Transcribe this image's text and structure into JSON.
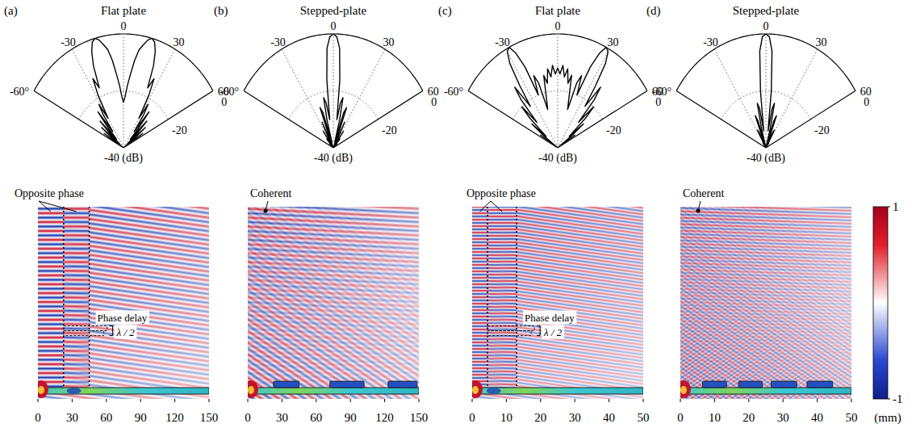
{
  "chart_data": [
    {
      "type": "polar",
      "label": "(a)",
      "title": "Flat plate",
      "color": "#000000",
      "grid": true,
      "x": [
        -60,
        -58,
        -56,
        -54,
        -52,
        -50,
        -48,
        -46,
        -44,
        -42,
        -40,
        -38,
        -36,
        -34,
        -32,
        -30,
        -28,
        -26,
        -24,
        -22,
        -20,
        -18,
        -16,
        -14,
        -12,
        -10,
        -8,
        -6,
        -4,
        -2,
        0,
        2,
        4,
        6,
        8,
        10,
        12,
        14,
        16,
        18,
        20,
        22,
        24,
        26,
        28,
        30,
        32,
        34,
        36,
        38,
        40,
        42,
        44,
        46,
        48,
        50,
        52,
        54,
        56,
        58,
        60
      ],
      "values": [
        -40,
        -36,
        -31,
        -40,
        -34,
        -29,
        -38,
        -32,
        -27,
        -36,
        -30,
        -24,
        -33,
        -26,
        -22,
        -28,
        -19,
        -13,
        -17,
        -9,
        -4,
        -1,
        0,
        -1,
        -3,
        -5,
        -9,
        -14,
        -18,
        -22,
        -24,
        -22,
        -18,
        -14,
        -9,
        -5,
        -3,
        -1,
        0,
        -1,
        -4,
        -9,
        -17,
        -13,
        -19,
        -28,
        -22,
        -26,
        -33,
        -24,
        -30,
        -36,
        -27,
        -32,
        -38,
        -29,
        -34,
        -40,
        -31,
        -36,
        -40
      ],
      "xlim": [
        -60,
        60
      ],
      "xticks": [
        {
          "value": -60,
          "label": "-60°"
        },
        -30,
        0,
        30,
        60
      ],
      "ylim": [
        -40,
        0
      ],
      "yticks": [
        {
          "value": -40,
          "label": "-40 (dB)"
        },
        -20,
        0
      ]
    },
    {
      "type": "field_map",
      "xlim": [
        0,
        150
      ],
      "xticks": [
        0,
        30,
        60,
        90,
        120,
        150
      ],
      "annotations": [
        "Opposite phase",
        "Phase delay",
        "λ / 2"
      ]
    },
    {
      "type": "polar",
      "label": "(b)",
      "title": "Stepped-plate",
      "color": "#000000",
      "grid": true,
      "x": [
        -60,
        -58,
        -56,
        -54,
        -52,
        -50,
        -48,
        -46,
        -44,
        -42,
        -40,
        -38,
        -36,
        -34,
        -32,
        -30,
        -28,
        -26,
        -24,
        -22,
        -20,
        -18,
        -16,
        -14,
        -12,
        -10,
        -8,
        -6,
        -4,
        -2,
        0,
        2,
        4,
        6,
        8,
        10,
        12,
        14,
        16,
        18,
        20,
        22,
        24,
        26,
        28,
        30,
        32,
        34,
        36,
        38,
        40,
        42,
        44,
        46,
        48,
        50,
        52,
        54,
        56,
        58,
        60
      ],
      "values": [
        -40,
        -40,
        -40,
        -39,
        -40,
        -40,
        -40,
        -38,
        -40,
        -40,
        -36,
        -40,
        -40,
        -33,
        -40,
        -40,
        -36,
        -30,
        -40,
        -35,
        -25,
        -27,
        -38,
        -30,
        -22,
        -24,
        -30,
        -16,
        -5,
        -1,
        0,
        -1,
        -5,
        -16,
        -30,
        -24,
        -22,
        -30,
        -38,
        -27,
        -25,
        -35,
        -40,
        -30,
        -36,
        -40,
        -40,
        -33,
        -40,
        -40,
        -36,
        -40,
        -40,
        -38,
        -40,
        -40,
        -40,
        -39,
        -40,
        -40,
        -40
      ],
      "xlim": [
        -60,
        60
      ],
      "xticks": [
        {
          "value": -60,
          "label": "-60°"
        },
        -30,
        0,
        30,
        60
      ],
      "ylim": [
        -40,
        0
      ],
      "yticks": [
        {
          "value": -40,
          "label": "-40 (dB)"
        },
        -20,
        0
      ]
    },
    {
      "type": "field_map",
      "xlim": [
        0,
        150
      ],
      "xticks": [
        0,
        30,
        60,
        90,
        120,
        150
      ],
      "annotations": [
        "Coherent"
      ]
    },
    {
      "type": "polar",
      "label": "(c)",
      "title": "Flat plate",
      "color": "#000000",
      "grid": true,
      "x": [
        -60,
        -58,
        -56,
        -54,
        -52,
        -50,
        -48,
        -46,
        -44,
        -42,
        -40,
        -38,
        -36,
        -34,
        -32,
        -30,
        -28,
        -26,
        -24,
        -22,
        -20,
        -18,
        -16,
        -14,
        -12,
        -10,
        -8,
        -6,
        -4,
        -2,
        0,
        2,
        4,
        6,
        8,
        10,
        12,
        14,
        16,
        18,
        20,
        22,
        24,
        26,
        28,
        30,
        32,
        34,
        36,
        38,
        40,
        42,
        44,
        46,
        48,
        50,
        52,
        54,
        56,
        58,
        60
      ],
      "values": [
        -40,
        -38,
        -32,
        -40,
        -33,
        -27,
        -34,
        -25,
        -20,
        -28,
        -18,
        -13,
        -22,
        -14,
        -5,
        -1,
        0,
        -3,
        -9,
        -20,
        -13,
        -16,
        -26,
        -22,
        -14,
        -17,
        -12,
        -15,
        -11,
        -14,
        -12,
        -14,
        -11,
        -15,
        -12,
        -17,
        -14,
        -22,
        -26,
        -16,
        -13,
        -20,
        -9,
        -3,
        0,
        -1,
        -5,
        -14,
        -22,
        -13,
        -18,
        -28,
        -20,
        -25,
        -34,
        -27,
        -33,
        -40,
        -32,
        -38,
        -40
      ],
      "xlim": [
        -60,
        60
      ],
      "xticks": [
        {
          "value": -60,
          "label": "-60°"
        },
        -30,
        0,
        30,
        60
      ],
      "ylim": [
        -40,
        0
      ],
      "yticks": [
        {
          "value": -40,
          "label": "-40 (dB)"
        },
        -20,
        0
      ]
    },
    {
      "type": "field_map",
      "xlim": [
        0,
        50
      ],
      "xticks": [
        0,
        10,
        20,
        30,
        40,
        50
      ],
      "annotations": [
        "Opposite phase",
        "Phase delay",
        "λ / 2"
      ]
    },
    {
      "type": "polar",
      "label": "(d)",
      "title": "Stepped-plate",
      "color": "#000000",
      "grid": true,
      "x": [
        -60,
        -58,
        -56,
        -54,
        -52,
        -50,
        -48,
        -46,
        -44,
        -42,
        -40,
        -38,
        -36,
        -34,
        -32,
        -30,
        -28,
        -26,
        -24,
        -22,
        -20,
        -18,
        -16,
        -14,
        -12,
        -10,
        -8,
        -6,
        -4,
        -2,
        0,
        2,
        4,
        6,
        8,
        10,
        12,
        14,
        16,
        18,
        20,
        22,
        24,
        26,
        28,
        30,
        32,
        34,
        36,
        38,
        40,
        42,
        44,
        46,
        48,
        50,
        52,
        54,
        56,
        58,
        60
      ],
      "values": [
        -40,
        -40,
        -40,
        -40,
        -40,
        -40,
        -40,
        -40,
        -40,
        -40,
        -40,
        -40,
        -40,
        -38,
        -40,
        -40,
        -33,
        -34,
        -40,
        -38,
        -28,
        -30,
        -40,
        -33,
        -24,
        -26,
        -34,
        -20,
        -6,
        -1,
        0,
        -1,
        -6,
        -20,
        -34,
        -26,
        -24,
        -33,
        -40,
        -30,
        -28,
        -38,
        -40,
        -34,
        -33,
        -40,
        -40,
        -38,
        -40,
        -40,
        -40,
        -40,
        -40,
        -40,
        -40,
        -40,
        -40,
        -40,
        -40,
        -40,
        -40
      ],
      "xlim": [
        -60,
        60
      ],
      "xticks": [
        {
          "value": -60,
          "label": "-60°"
        },
        -30,
        0,
        30,
        60
      ],
      "ylim": [
        -40,
        0
      ],
      "yticks": [
        {
          "value": -40,
          "label": "-40 (dB)"
        },
        -20,
        0
      ]
    },
    {
      "type": "field_map",
      "xlim": [
        0,
        50
      ],
      "xticks": [
        0,
        10,
        20,
        30,
        40,
        50
      ],
      "annotations": [
        "Coherent"
      ],
      "xlabel": "(mm)",
      "colorbar": {
        "range": [
          -1,
          1
        ],
        "ticks": [
          -1,
          1
        ]
      }
    }
  ]
}
